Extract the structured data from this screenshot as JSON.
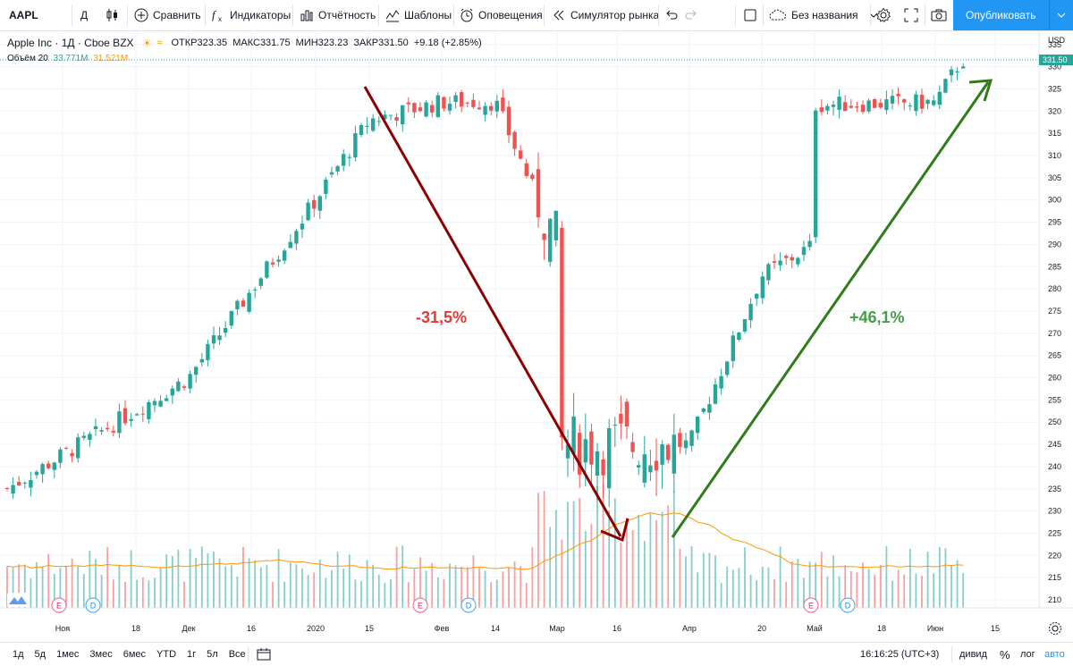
{
  "toolbar": {
    "symbol": "AAPL",
    "interval": "Д",
    "compare_label": "Сравнить",
    "indicators_label": "Индикаторы",
    "financials_label": "Отчётность",
    "templates_label": "Шаблоны",
    "alerts_label": "Оповещения",
    "replay_label": "Симулятор рынка",
    "layout_name": "Без названия",
    "publish_label": "Опубликовать"
  },
  "legend": {
    "title": "Apple Inc · 1Д · Cboe BZX",
    "open_label": "ОТКР",
    "open": "323.35",
    "high_label": "МАКС",
    "high": "331.75",
    "low_label": "МИН",
    "low": "323.23",
    "close_label": "ЗАКР",
    "close": "331.50",
    "change": "+9.18 (+2.85%)",
    "volume_label": "Объём 20",
    "volume_value": "33.771M",
    "volume_ma": "31.521M"
  },
  "colors": {
    "up": "#26a69a",
    "down": "#ef5350",
    "volume_ma": "#ff9800",
    "arrow_down": "#8b0000",
    "arrow_up": "#2e7d1a",
    "last_price_bg": "#26a69a",
    "accent": "#2196f3"
  },
  "chart_data": {
    "type": "candlestick",
    "symbol": "AAPL",
    "price_axis": {
      "currency": "USD",
      "ticks": [
        210,
        215,
        220,
        225,
        230,
        235,
        240,
        245,
        250,
        255,
        260,
        265,
        270,
        275,
        280,
        285,
        290,
        295,
        300,
        305,
        310,
        315,
        320,
        325,
        330,
        335
      ],
      "last_price": "331.50"
    },
    "time_axis_ticks": [
      "Ноя",
      "18",
      "Дек",
      "16",
      "2020",
      "15",
      "Фев",
      "14",
      "Мар",
      "16",
      "Апр",
      "20",
      "Май",
      "18",
      "Июн",
      "15"
    ],
    "annotations": {
      "down_move": "-31,5%",
      "up_move": "+46,1%"
    },
    "events": [
      "E",
      "D",
      "E",
      "D",
      "E",
      "D"
    ],
    "segments": [
      {
        "from": "Ноя",
        "from_price": 235,
        "to": "Ноя",
        "to_price": 269
      },
      {
        "from": "Дек",
        "from_price": 260,
        "to": "2020",
        "to_price": 300
      },
      {
        "from": "2020",
        "from_price": 300,
        "to": "15",
        "to_price": 318
      },
      {
        "from": "15",
        "from_price": 318,
        "to": "Фев",
        "to_price": 322
      },
      {
        "from": "Фев",
        "from_price": 322,
        "to": "14",
        "to_price": 322
      },
      {
        "from": "14",
        "from_price": 322,
        "to": "Мар",
        "to_price": 290
      },
      {
        "from": "Мар",
        "from_price": 290,
        "to": "16",
        "to_price": 245
      },
      {
        "from": "16",
        "from_price": 245,
        "to": "Апр",
        "to_price": 245
      },
      {
        "from": "Апр",
        "from_price": 245,
        "to": "20",
        "to_price": 283
      },
      {
        "from": "20",
        "from_price": 283,
        "to": "Май",
        "to_price": 290
      },
      {
        "from": "Май",
        "from_price": 290,
        "to": "18",
        "to_price": 318
      },
      {
        "from": "18",
        "from_price": 318,
        "to": "Июн",
        "to_price": 322
      },
      {
        "from": "Июн",
        "from_price": 322,
        "to": "Июн",
        "to_price": 331.5
      }
    ]
  },
  "bottom": {
    "ranges": [
      "1д",
      "5д",
      "1мес",
      "3мес",
      "6мес",
      "YTD",
      "1г",
      "5л",
      "Все"
    ],
    "time": "16:16:25 (UTC+3)",
    "adj_label": "дивид",
    "percent_label": "%",
    "log_label": "лог",
    "auto_label": "авто"
  }
}
